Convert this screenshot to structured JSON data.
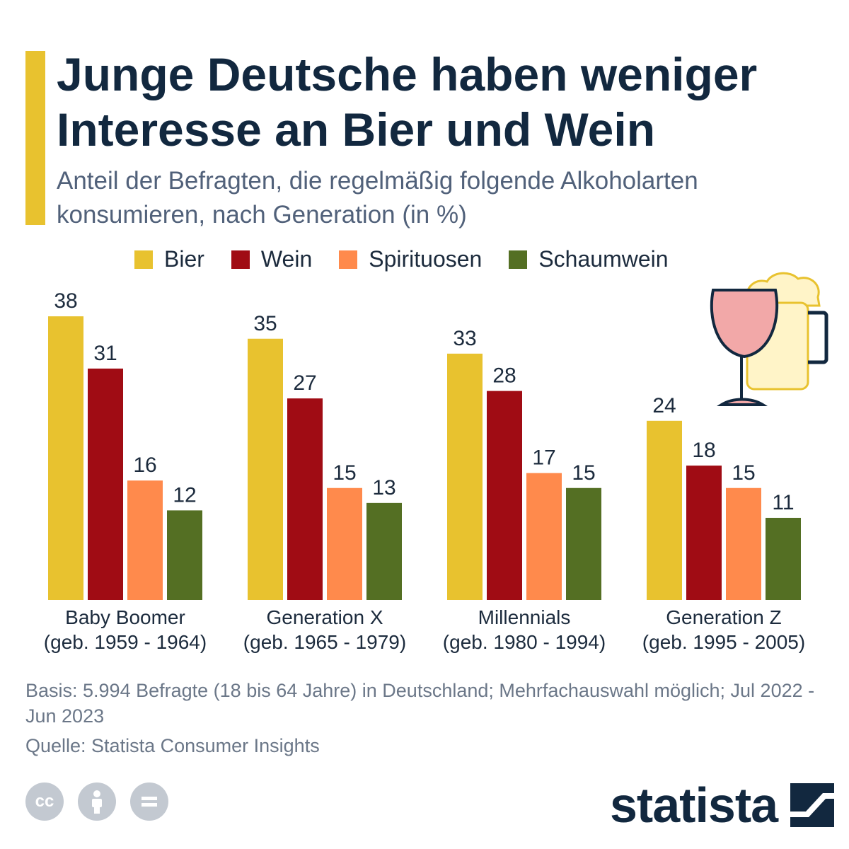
{
  "header": {
    "title": "Junge Deutsche haben weniger Interesse an Bier und Wein",
    "subtitle": "Anteil der Befragten, die regelmäßig folgende Alkoholarten konsumieren, nach Generation (in %)"
  },
  "colors": {
    "accent": "#e8c22f",
    "Bier": "#e8c22f",
    "Wein": "#a00c14",
    "Spirituosen": "#ff8a4c",
    "Schaumwein": "#546f23"
  },
  "legend": [
    "Bier",
    "Wein",
    "Spirituosen",
    "Schaumwein"
  ],
  "chart_data": {
    "type": "bar",
    "title": "Junge Deutsche haben weniger Interesse an Bier und Wein",
    "subtitle": "Anteil der Befragten, die regelmäßig folgende Alkoholarten konsumieren, nach Generation (in %)",
    "xlabel": "",
    "ylabel": "",
    "ylim": [
      0,
      40
    ],
    "grid": false,
    "legend_position": "top",
    "categories": [
      {
        "name": "Baby Boomer",
        "sub": "(geb. 1959 - 1964)"
      },
      {
        "name": "Generation X",
        "sub": "(geb. 1965 - 1979)"
      },
      {
        "name": "Millennials",
        "sub": "(geb. 1980 - 1994)"
      },
      {
        "name": "Generation Z",
        "sub": "(geb. 1995 - 2005)"
      }
    ],
    "series": [
      {
        "name": "Bier",
        "values": [
          38,
          35,
          33,
          24
        ]
      },
      {
        "name": "Wein",
        "values": [
          31,
          27,
          28,
          18
        ]
      },
      {
        "name": "Spirituosen",
        "values": [
          16,
          15,
          17,
          15
        ]
      },
      {
        "name": "Schaumwein",
        "values": [
          12,
          13,
          15,
          11
        ]
      }
    ]
  },
  "footer": {
    "basis": "Basis: 5.994 Befragte (18 bis 64 Jahre) in Deutschland; Mehrfachauswahl möglich; Jul 2022 - Jun 2023",
    "source": "Quelle: Statista Consumer Insights"
  },
  "license_icons": [
    "cc-icon",
    "attribution-icon",
    "no-derivatives-icon"
  ],
  "brand": {
    "logo_text": "statista"
  }
}
